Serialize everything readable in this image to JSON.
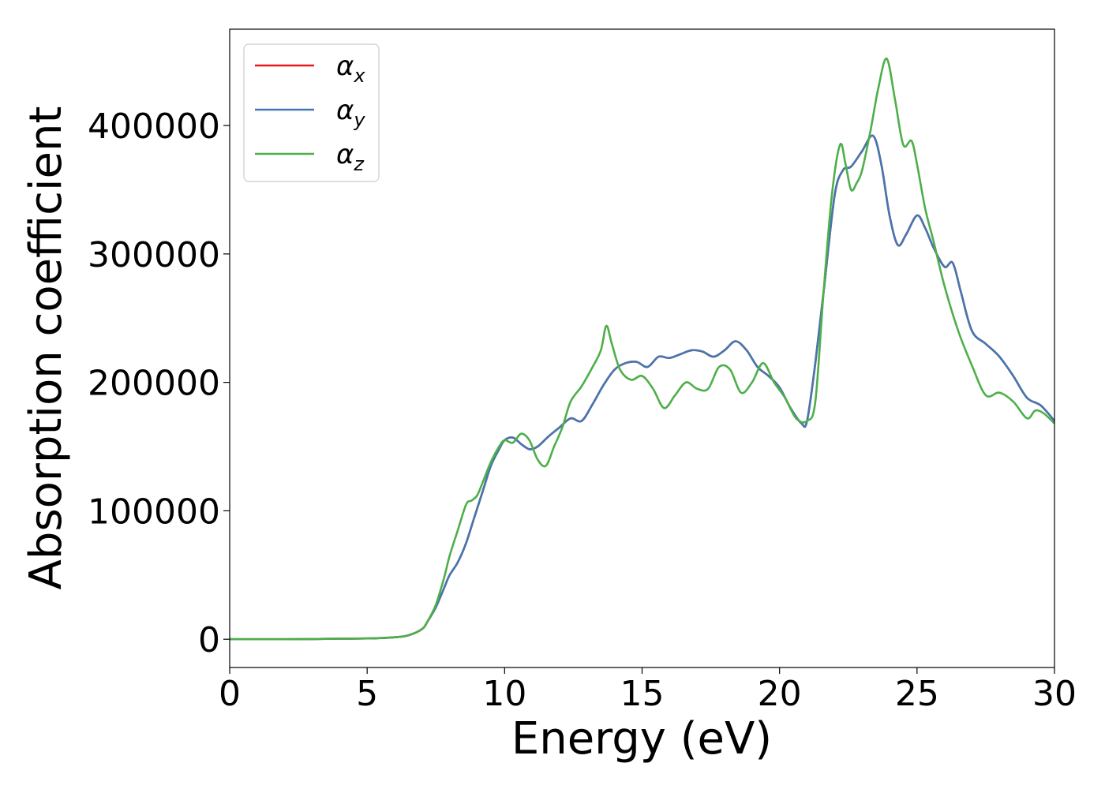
{
  "chart_data": {
    "type": "line",
    "xlabel": "Energy (eV)",
    "ylabel": "Absorption coefficient",
    "xlim": [
      0,
      30
    ],
    "ylim": [
      -22000,
      475000
    ],
    "xticks": [
      0,
      5,
      10,
      15,
      20,
      25,
      30
    ],
    "yticks": [
      0,
      100000,
      200000,
      300000,
      400000
    ],
    "grid": false,
    "legend_position": "top-left",
    "series": [
      {
        "name": "αx",
        "symbol": "α",
        "subscript": "x",
        "color": "#e41a1c",
        "x": [
          0,
          1,
          2,
          3,
          4,
          5,
          5.5,
          6,
          6.5,
          7,
          7.2,
          7.5,
          7.8,
          8,
          8.3,
          8.6,
          8.9,
          9.2,
          9.5,
          9.8,
          10,
          10.3,
          10.6,
          10.9,
          11.2,
          11.6,
          12,
          12.4,
          12.8,
          13.2,
          13.6,
          14,
          14.4,
          14.8,
          15.2,
          15.6,
          16,
          16.4,
          16.8,
          17.2,
          17.6,
          18,
          18.4,
          18.8,
          19.2,
          19.6,
          20,
          20.4,
          20.8,
          21,
          21.3,
          21.6,
          22,
          22.3,
          22.6,
          23,
          23.4,
          23.7,
          24,
          24.3,
          24.6,
          25,
          25.3,
          25.6,
          26,
          26.3,
          26.6,
          27,
          27.5,
          28,
          28.5,
          29,
          29.5,
          30
        ],
        "y": [
          0,
          0,
          0,
          200,
          400,
          600,
          900,
          1500,
          3000,
          8000,
          14000,
          25000,
          40000,
          50000,
          60000,
          75000,
          95000,
          115000,
          135000,
          148000,
          155000,
          157000,
          152000,
          148000,
          150000,
          158000,
          165000,
          172000,
          170000,
          183000,
          198000,
          210000,
          215000,
          216000,
          212000,
          220000,
          219000,
          222000,
          225000,
          224000,
          220000,
          225000,
          232000,
          225000,
          212000,
          205000,
          196000,
          180000,
          168000,
          170000,
          215000,
          270000,
          345000,
          365000,
          368000,
          380000,
          392000,
          370000,
          330000,
          307000,
          315000,
          330000,
          320000,
          305000,
          290000,
          293000,
          270000,
          240000,
          230000,
          220000,
          205000,
          188000,
          182000,
          170000
        ]
      },
      {
        "name": "αy",
        "symbol": "α",
        "subscript": "y",
        "color": "#4477b0",
        "x": [
          0,
          1,
          2,
          3,
          4,
          5,
          5.5,
          6,
          6.5,
          7,
          7.2,
          7.5,
          7.8,
          8,
          8.3,
          8.6,
          8.9,
          9.2,
          9.5,
          9.8,
          10,
          10.3,
          10.6,
          10.9,
          11.2,
          11.6,
          12,
          12.4,
          12.8,
          13.2,
          13.6,
          14,
          14.4,
          14.8,
          15.2,
          15.6,
          16,
          16.4,
          16.8,
          17.2,
          17.6,
          18,
          18.4,
          18.8,
          19.2,
          19.6,
          20,
          20.4,
          20.8,
          21,
          21.3,
          21.6,
          22,
          22.3,
          22.6,
          23,
          23.4,
          23.7,
          24,
          24.3,
          24.6,
          25,
          25.3,
          25.6,
          26,
          26.3,
          26.6,
          27,
          27.5,
          28,
          28.5,
          29,
          29.5,
          30
        ],
        "y": [
          0,
          0,
          0,
          200,
          400,
          600,
          900,
          1500,
          3000,
          8000,
          14000,
          25000,
          40000,
          50000,
          60000,
          75000,
          95000,
          115000,
          135000,
          148000,
          155000,
          157000,
          152000,
          148000,
          150000,
          158000,
          165000,
          172000,
          170000,
          183000,
          198000,
          210000,
          215000,
          216000,
          212000,
          220000,
          219000,
          222000,
          225000,
          224000,
          220000,
          225000,
          232000,
          225000,
          212000,
          205000,
          196000,
          180000,
          168000,
          170000,
          215000,
          270000,
          345000,
          365000,
          368000,
          380000,
          392000,
          370000,
          330000,
          307000,
          315000,
          330000,
          320000,
          305000,
          290000,
          293000,
          270000,
          240000,
          230000,
          220000,
          205000,
          188000,
          182000,
          170000
        ]
      },
      {
        "name": "αz",
        "symbol": "α",
        "subscript": "z",
        "color": "#4daf4a",
        "x": [
          0,
          1,
          2,
          3,
          4,
          5,
          5.5,
          6,
          6.5,
          7,
          7.2,
          7.5,
          7.8,
          8,
          8.3,
          8.6,
          8.8,
          9,
          9.2,
          9.5,
          9.8,
          10,
          10.3,
          10.6,
          10.9,
          11.2,
          11.5,
          11.8,
          12.1,
          12.4,
          12.8,
          13.2,
          13.5,
          13.7,
          13.9,
          14.2,
          14.6,
          15,
          15.4,
          15.8,
          16.2,
          16.6,
          17,
          17.4,
          17.8,
          18.2,
          18.6,
          19,
          19.4,
          19.8,
          20.2,
          20.6,
          21,
          21.3,
          21.6,
          21.9,
          22.2,
          22.4,
          22.6,
          22.8,
          23,
          23.3,
          23.6,
          23.9,
          24.2,
          24.5,
          24.8,
          25,
          25.3,
          25.6,
          26,
          26.5,
          27,
          27.5,
          28,
          28.5,
          29,
          29.3,
          29.6,
          30
        ],
        "y": [
          0,
          0,
          0,
          200,
          400,
          600,
          900,
          1500,
          3000,
          8000,
          14000,
          27000,
          48000,
          65000,
          85000,
          105000,
          108000,
          112000,
          122000,
          138000,
          150000,
          155000,
          153000,
          160000,
          155000,
          140000,
          135000,
          150000,
          165000,
          185000,
          197000,
          212000,
          225000,
          244000,
          230000,
          210000,
          202000,
          205000,
          195000,
          180000,
          190000,
          200000,
          195000,
          195000,
          212000,
          210000,
          192000,
          200000,
          215000,
          200000,
          188000,
          172000,
          170000,
          185000,
          270000,
          345000,
          385000,
          370000,
          350000,
          355000,
          365000,
          395000,
          430000,
          452000,
          420000,
          385000,
          388000,
          370000,
          335000,
          310000,
          275000,
          240000,
          213000,
          190000,
          192000,
          185000,
          172000,
          178000,
          176000,
          168000
        ]
      }
    ]
  }
}
